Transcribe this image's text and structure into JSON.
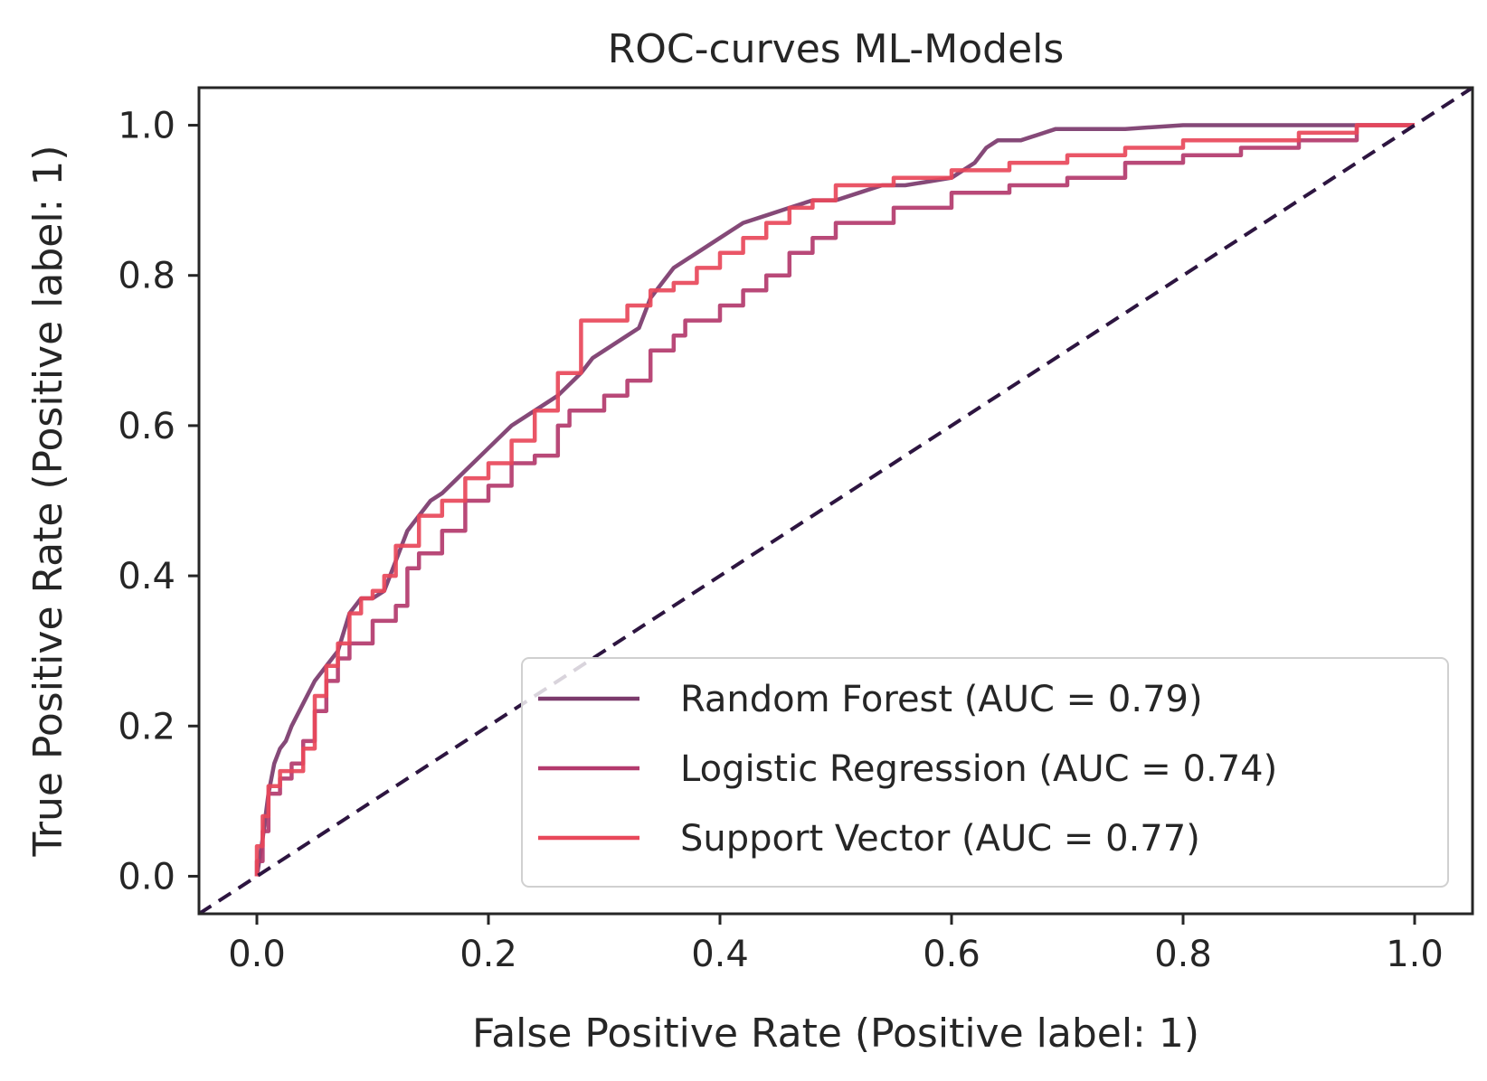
{
  "chart_data": {
    "type": "line",
    "title": "ROC-curves ML-Models",
    "xlabel": "False Positive Rate (Positive label: 1)",
    "ylabel": "True Positive Rate (Positive label: 1)",
    "xlim": [
      -0.05,
      1.05
    ],
    "ylim": [
      -0.05,
      1.05
    ],
    "xticks": [
      "0.0",
      "0.2",
      "0.4",
      "0.6",
      "0.8",
      "1.0"
    ],
    "yticks": [
      "0.0",
      "0.2",
      "0.4",
      "0.6",
      "0.8",
      "1.0"
    ],
    "grid": false,
    "legend_position": "lower-right",
    "series": [
      {
        "name": "Random Forest (AUC = 0.79)",
        "color": "#7b3a6c",
        "x": [
          0.0,
          0.005,
          0.01,
          0.015,
          0.02,
          0.025,
          0.03,
          0.04,
          0.05,
          0.06,
          0.07,
          0.08,
          0.09,
          0.1,
          0.11,
          0.12,
          0.13,
          0.14,
          0.15,
          0.16,
          0.18,
          0.2,
          0.22,
          0.24,
          0.26,
          0.28,
          0.29,
          0.3,
          0.32,
          0.33,
          0.34,
          0.35,
          0.36,
          0.38,
          0.4,
          0.41,
          0.42,
          0.44,
          0.46,
          0.48,
          0.5,
          0.52,
          0.54,
          0.56,
          0.58,
          0.6,
          0.62,
          0.63,
          0.64,
          0.65,
          0.66,
          0.68,
          0.69,
          0.7,
          0.75,
          0.8,
          0.85,
          0.9,
          0.95,
          1.0
        ],
        "y": [
          0.0,
          0.05,
          0.11,
          0.15,
          0.17,
          0.18,
          0.2,
          0.23,
          0.26,
          0.28,
          0.3,
          0.35,
          0.37,
          0.37,
          0.38,
          0.42,
          0.46,
          0.48,
          0.5,
          0.51,
          0.54,
          0.57,
          0.6,
          0.62,
          0.64,
          0.67,
          0.69,
          0.7,
          0.72,
          0.73,
          0.77,
          0.79,
          0.81,
          0.83,
          0.85,
          0.86,
          0.87,
          0.88,
          0.89,
          0.9,
          0.9,
          0.91,
          0.92,
          0.92,
          0.925,
          0.93,
          0.95,
          0.97,
          0.98,
          0.98,
          0.98,
          0.99,
          0.995,
          0.995,
          0.995,
          1.0,
          1.0,
          1.0,
          1.0,
          1.0
        ]
      },
      {
        "name": "Logistic Regression (AUC = 0.74)",
        "color": "#b33a6d",
        "x": [
          0.0,
          0.0,
          0.005,
          0.005,
          0.01,
          0.01,
          0.02,
          0.02,
          0.03,
          0.03,
          0.04,
          0.04,
          0.05,
          0.05,
          0.06,
          0.06,
          0.07,
          0.07,
          0.08,
          0.08,
          0.1,
          0.1,
          0.12,
          0.12,
          0.13,
          0.13,
          0.14,
          0.14,
          0.16,
          0.16,
          0.18,
          0.18,
          0.2,
          0.2,
          0.22,
          0.22,
          0.24,
          0.24,
          0.26,
          0.26,
          0.27,
          0.27,
          0.3,
          0.3,
          0.32,
          0.32,
          0.34,
          0.34,
          0.36,
          0.36,
          0.37,
          0.37,
          0.4,
          0.4,
          0.42,
          0.42,
          0.44,
          0.44,
          0.46,
          0.46,
          0.48,
          0.48,
          0.5,
          0.5,
          0.55,
          0.55,
          0.6,
          0.6,
          0.65,
          0.65,
          0.7,
          0.7,
          0.75,
          0.75,
          0.8,
          0.8,
          0.85,
          0.85,
          0.9,
          0.9,
          0.95,
          0.95,
          1.0
        ],
        "y": [
          0.0,
          0.02,
          0.02,
          0.06,
          0.06,
          0.11,
          0.11,
          0.13,
          0.13,
          0.15,
          0.15,
          0.18,
          0.18,
          0.22,
          0.22,
          0.26,
          0.26,
          0.29,
          0.29,
          0.31,
          0.31,
          0.34,
          0.34,
          0.36,
          0.36,
          0.41,
          0.41,
          0.43,
          0.43,
          0.46,
          0.46,
          0.5,
          0.5,
          0.52,
          0.52,
          0.55,
          0.55,
          0.56,
          0.56,
          0.6,
          0.6,
          0.62,
          0.62,
          0.64,
          0.64,
          0.66,
          0.66,
          0.7,
          0.7,
          0.72,
          0.72,
          0.74,
          0.74,
          0.76,
          0.76,
          0.78,
          0.78,
          0.8,
          0.8,
          0.83,
          0.83,
          0.85,
          0.85,
          0.87,
          0.87,
          0.89,
          0.89,
          0.91,
          0.91,
          0.92,
          0.92,
          0.93,
          0.93,
          0.95,
          0.95,
          0.96,
          0.96,
          0.97,
          0.97,
          0.98,
          0.98,
          1.0,
          1.0
        ]
      },
      {
        "name": "Support Vector (AUC = 0.77)",
        "color": "#e8485a",
        "x": [
          0.0,
          0.0,
          0.005,
          0.005,
          0.01,
          0.01,
          0.02,
          0.02,
          0.04,
          0.04,
          0.05,
          0.05,
          0.06,
          0.06,
          0.07,
          0.07,
          0.08,
          0.08,
          0.09,
          0.09,
          0.1,
          0.1,
          0.11,
          0.11,
          0.12,
          0.12,
          0.14,
          0.14,
          0.16,
          0.16,
          0.18,
          0.18,
          0.2,
          0.2,
          0.22,
          0.22,
          0.24,
          0.24,
          0.26,
          0.26,
          0.28,
          0.28,
          0.3,
          0.3,
          0.32,
          0.32,
          0.34,
          0.34,
          0.36,
          0.36,
          0.38,
          0.38,
          0.4,
          0.4,
          0.42,
          0.42,
          0.44,
          0.44,
          0.46,
          0.46,
          0.48,
          0.48,
          0.5,
          0.5,
          0.55,
          0.55,
          0.6,
          0.6,
          0.65,
          0.65,
          0.7,
          0.7,
          0.75,
          0.75,
          0.8,
          0.8,
          0.85,
          0.85,
          0.9,
          0.9,
          0.95,
          0.95,
          1.0
        ],
        "y": [
          0.0,
          0.04,
          0.04,
          0.08,
          0.08,
          0.12,
          0.12,
          0.14,
          0.14,
          0.17,
          0.17,
          0.24,
          0.24,
          0.28,
          0.28,
          0.31,
          0.31,
          0.35,
          0.35,
          0.37,
          0.37,
          0.38,
          0.38,
          0.4,
          0.4,
          0.44,
          0.44,
          0.48,
          0.48,
          0.5,
          0.5,
          0.53,
          0.53,
          0.55,
          0.55,
          0.58,
          0.58,
          0.62,
          0.62,
          0.67,
          0.67,
          0.74,
          0.74,
          0.74,
          0.74,
          0.76,
          0.76,
          0.78,
          0.78,
          0.79,
          0.79,
          0.81,
          0.81,
          0.83,
          0.83,
          0.85,
          0.85,
          0.87,
          0.87,
          0.89,
          0.89,
          0.9,
          0.9,
          0.92,
          0.92,
          0.93,
          0.93,
          0.94,
          0.94,
          0.95,
          0.95,
          0.96,
          0.96,
          0.97,
          0.97,
          0.98,
          0.98,
          0.98,
          0.98,
          0.99,
          0.99,
          1.0,
          1.0
        ]
      }
    ],
    "reference_line": {
      "x": [
        -0.05,
        1.05
      ],
      "y": [
        -0.05,
        1.05
      ],
      "color": "#2d1540",
      "style": "dashed"
    }
  }
}
